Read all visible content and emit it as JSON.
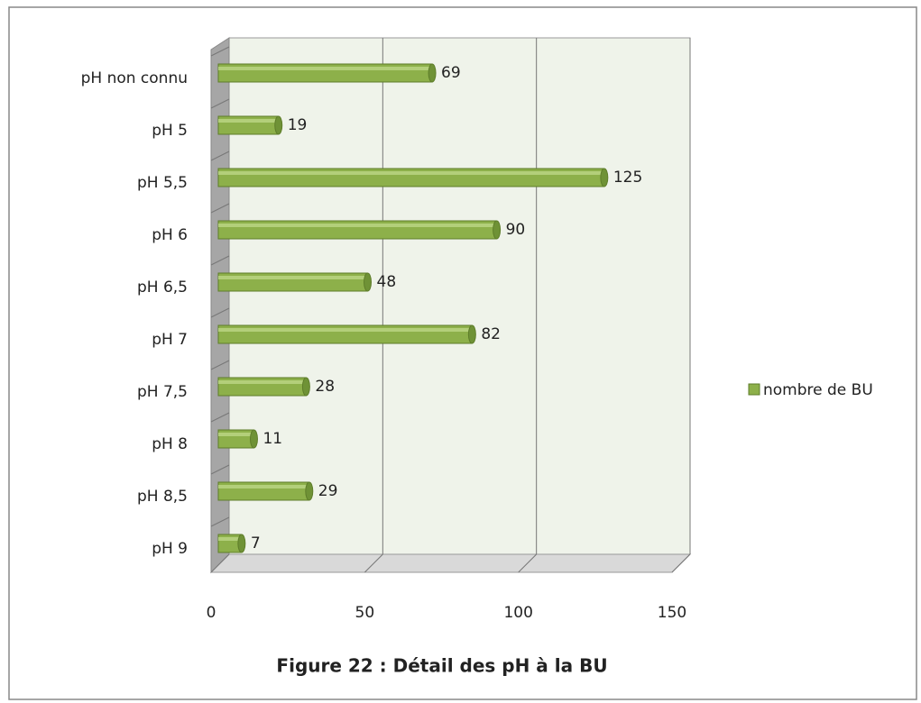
{
  "chart_data": {
    "type": "bar",
    "orientation": "horizontal",
    "title": "Figure 22 : Détail des pH à la BU",
    "categories": [
      "pH non connu",
      "pH 5",
      "pH 5,5",
      "pH 6",
      "pH 6,5",
      "pH 7",
      "pH 7,5",
      "pH 8",
      "pH 8,5",
      "pH 9"
    ],
    "series": [
      {
        "name": "nombre de BU",
        "color": "#8db04a",
        "values": [
          69,
          19,
          125,
          90,
          48,
          82,
          28,
          11,
          29,
          7
        ]
      }
    ],
    "xlim": [
      0,
      150
    ],
    "xticks": [
      0,
      50,
      100,
      150
    ],
    "grid": true,
    "legend": "right"
  }
}
